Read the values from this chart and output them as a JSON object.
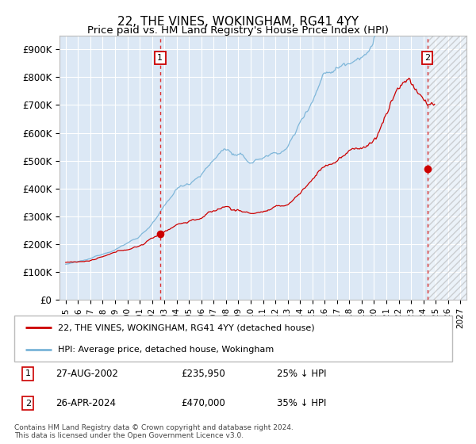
{
  "title": "22, THE VINES, WOKINGHAM, RG41 4YY",
  "subtitle": "Price paid vs. HM Land Registry's House Price Index (HPI)",
  "ylabel_ticks": [
    "£0",
    "£100K",
    "£200K",
    "£300K",
    "£400K",
    "£500K",
    "£600K",
    "£700K",
    "£800K",
    "£900K"
  ],
  "ylim": [
    0,
    950000
  ],
  "xlim_start": 1994.5,
  "xlim_end": 2027.5,
  "bg_color": "#dce8f5",
  "hpi_color": "#7ab4d8",
  "price_color": "#cc0000",
  "sale1_date": 2002.65,
  "sale1_price": 235950,
  "sale2_date": 2024.32,
  "sale2_price": 470000,
  "legend_label1": "22, THE VINES, WOKINGHAM, RG41 4YY (detached house)",
  "legend_label2": "HPI: Average price, detached house, Wokingham",
  "annotation1_label": "1",
  "annotation1_date": "27-AUG-2002",
  "annotation1_price": "£235,950",
  "annotation1_hpi": "25% ↓ HPI",
  "annotation2_label": "2",
  "annotation2_date": "26-APR-2024",
  "annotation2_price": "£470,000",
  "annotation2_hpi": "35% ↓ HPI",
  "footer": "Contains HM Land Registry data © Crown copyright and database right 2024.\nThis data is licensed under the Open Government Licence v3.0."
}
